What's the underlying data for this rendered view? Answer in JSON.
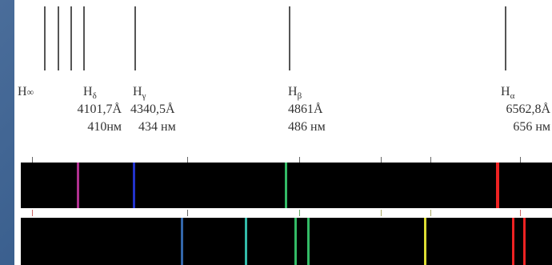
{
  "labels": [
    {
      "id": "h-inf",
      "symbol": "H",
      "sub": "∞",
      "wavelength": "",
      "nm": ""
    },
    {
      "id": "h-delta",
      "symbol": "H",
      "sub": "δ",
      "wavelength": "4101,7Å",
      "nm": "410нм"
    },
    {
      "id": "h-gamma",
      "symbol": "H",
      "sub": "γ",
      "wavelength": "4340,5Å",
      "nm": "434 нм"
    },
    {
      "id": "h-beta",
      "symbol": "H",
      "sub": "β",
      "wavelength": "4861Å",
      "nm": "486 нм"
    },
    {
      "id": "h-alpha",
      "symbol": "H",
      "sub": "α",
      "wavelength": "6562,8Å",
      "nm": "656 нм"
    }
  ],
  "colors": {
    "violet": "#b0308f",
    "blue": "#2233cc",
    "green": "#33bb66",
    "red": "#ee2222",
    "cyan": "#33bbaa",
    "steel_blue": "#3366aa",
    "yellow": "#dddd33"
  }
}
